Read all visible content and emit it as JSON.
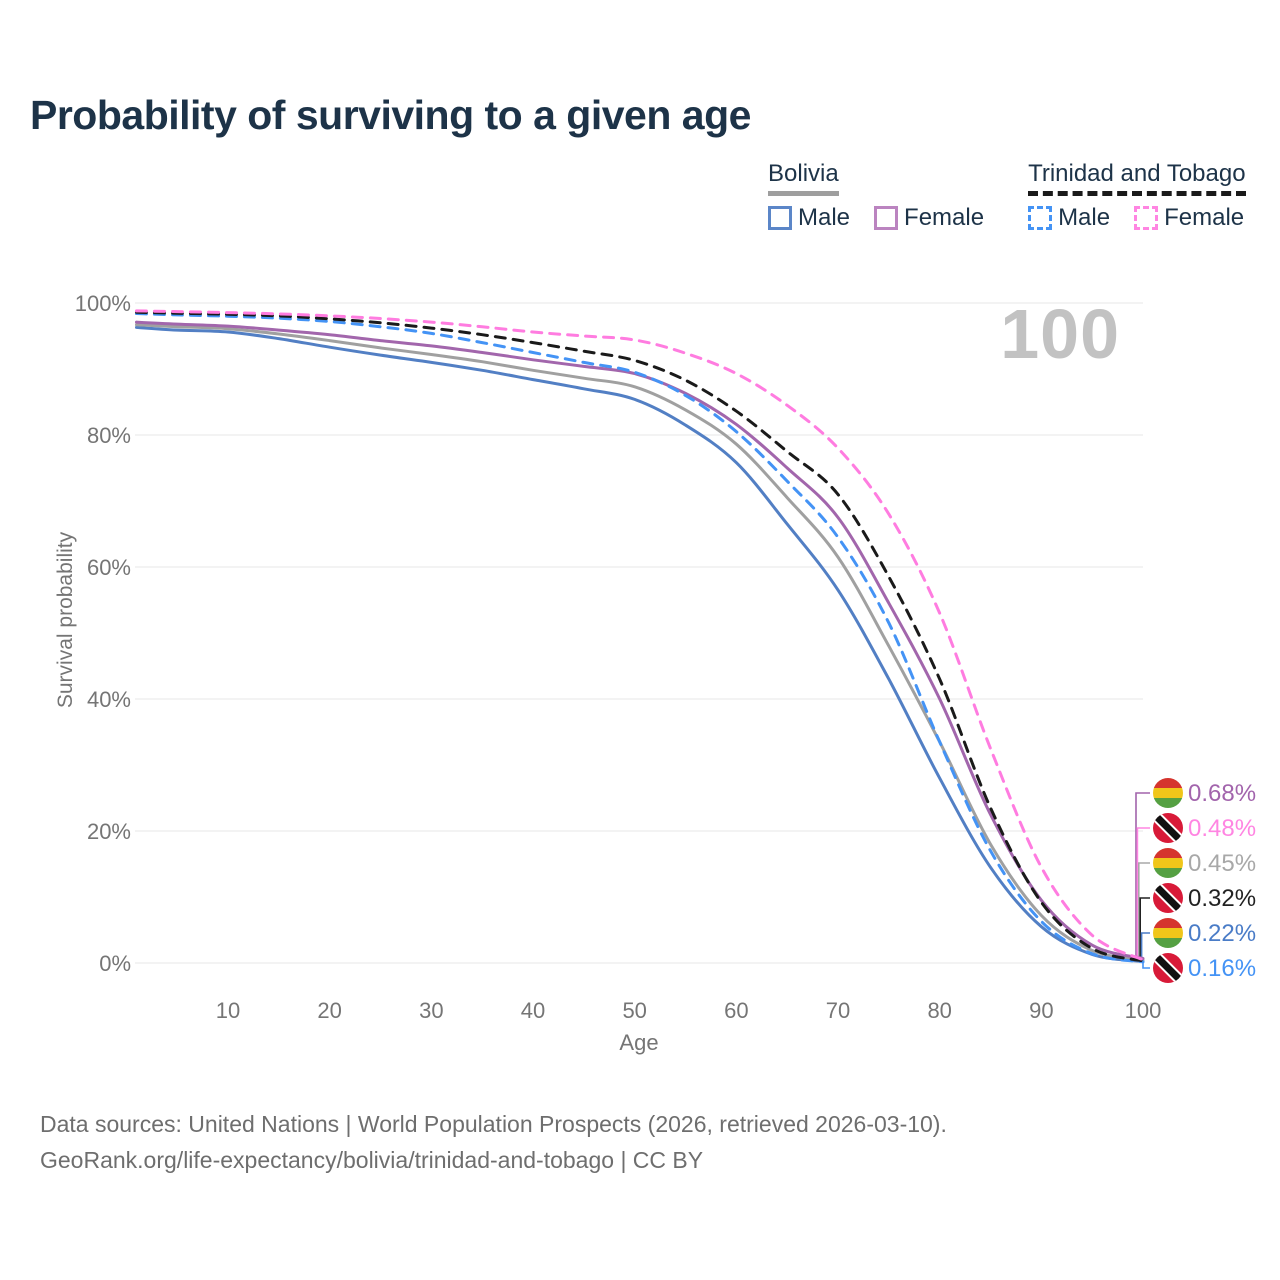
{
  "title": "Probability of surviving to a given age",
  "watermark": "100",
  "legend": {
    "groups": [
      {
        "name": "Bolivia",
        "line_style": "solid",
        "underline_color": "#9e9e9e",
        "items": [
          {
            "label": "Male",
            "color": "#527fc4"
          },
          {
            "label": "Female",
            "color": "#a266ac"
          }
        ]
      },
      {
        "name": "Trinidad and Tobago",
        "line_style": "dashed",
        "underline_color": "#1a1a1a",
        "items": [
          {
            "label": "Male",
            "color": "#4493f5"
          },
          {
            "label": "Female",
            "color": "#ff7ce0"
          }
        ]
      }
    ]
  },
  "chart_data": {
    "type": "line",
    "title": "Probability of surviving to a given age",
    "xlabel": "Age",
    "ylabel": "Survival probability",
    "xlim": [
      0,
      100
    ],
    "ylim": [
      0,
      100
    ],
    "grid": true,
    "legend_position": "top-right",
    "x_ticks": [
      10,
      20,
      30,
      40,
      50,
      60,
      70,
      80,
      90,
      100
    ],
    "y_tick_values": [
      0,
      20,
      40,
      60,
      80,
      100
    ],
    "y_tick_labels": [
      "0%",
      "20%",
      "40%",
      "60%",
      "80%",
      "100%"
    ],
    "x": [
      1,
      5,
      10,
      15,
      20,
      25,
      30,
      35,
      40,
      45,
      50,
      55,
      60,
      65,
      70,
      75,
      80,
      85,
      90,
      95,
      100
    ],
    "series": [
      {
        "name": "Bolivia Male",
        "color": "#527fc4",
        "dash": false,
        "values": [
          96.3,
          95.9,
          95.6,
          94.6,
          93.3,
          92.1,
          91.0,
          89.8,
          88.4,
          87.0,
          85.4,
          81.5,
          75.8,
          66.5,
          56.5,
          43.0,
          28.0,
          14.5,
          5.5,
          1.3,
          0.22
        ]
      },
      {
        "name": "Bolivia Both sexes",
        "color": "#a0a0a0",
        "dash": false,
        "values": [
          96.7,
          96.4,
          96.1,
          95.3,
          94.3,
          93.2,
          92.2,
          91.1,
          89.8,
          88.6,
          87.3,
          83.8,
          78.6,
          70.5,
          61.5,
          48.0,
          33.5,
          18.0,
          7.2,
          1.9,
          0.45
        ]
      },
      {
        "name": "Bolivia Female",
        "color": "#a266ac",
        "dash": false,
        "values": [
          97.1,
          96.8,
          96.5,
          95.9,
          95.2,
          94.3,
          93.5,
          92.5,
          91.4,
          90.4,
          89.3,
          86.3,
          81.6,
          75.0,
          67.5,
          54.5,
          40.0,
          22.5,
          9.5,
          2.7,
          0.68
        ]
      },
      {
        "name": "Trinidad and Tobago Male",
        "color": "#4493f5",
        "dash": true,
        "values": [
          98.4,
          98.2,
          98.0,
          97.7,
          97.2,
          96.4,
          95.4,
          94.0,
          92.5,
          91.0,
          89.5,
          86.0,
          80.5,
          73.0,
          64.5,
          51.5,
          33.5,
          17.0,
          6.3,
          1.4,
          0.16
        ]
      },
      {
        "name": "Trinidad and Tobago Both sexes",
        "color": "#1a1a1a",
        "dash": true,
        "values": [
          98.6,
          98.45,
          98.3,
          98.05,
          97.6,
          97.0,
          96.2,
          95.2,
          94.0,
          92.7,
          91.3,
          88.3,
          83.6,
          77.5,
          71.0,
          58.5,
          43.0,
          23.5,
          9.2,
          2.2,
          0.32
        ]
      },
      {
        "name": "Trinidad and Tobago Female",
        "color": "#ff7ce0",
        "dash": true,
        "values": [
          98.8,
          98.7,
          98.55,
          98.35,
          98.05,
          97.65,
          97.1,
          96.4,
          95.6,
          95.0,
          94.4,
          92.4,
          89.3,
          84.5,
          78.0,
          68.0,
          53.0,
          32.5,
          14.5,
          4.2,
          0.48
        ]
      }
    ],
    "end_labels": [
      {
        "text": "0.68%",
        "value": 0.68,
        "color": "#a264ac",
        "flag": "bolivia",
        "series": "Bolivia Female"
      },
      {
        "text": "0.48%",
        "value": 0.48,
        "color": "#ff85e2",
        "flag": "trinidad",
        "series": "Trinidad and Tobago Female"
      },
      {
        "text": "0.45%",
        "value": 0.45,
        "color": "#a8a8a8",
        "flag": "bolivia",
        "series": "Bolivia Both sexes"
      },
      {
        "text": "0.32%",
        "value": 0.32,
        "color": "#222222",
        "flag": "trinidad",
        "series": "Trinidad and Tobago Both sexes"
      },
      {
        "text": "0.22%",
        "value": 0.22,
        "color": "#4a7cc7",
        "flag": "bolivia",
        "series": "Bolivia Male"
      },
      {
        "text": "0.16%",
        "value": 0.16,
        "color": "#4493f5",
        "flag": "trinidad",
        "series": "Trinidad and Tobago Male"
      }
    ],
    "flag_colors": {
      "bolivia": {
        "red": "#d5342e",
        "yellow": "#f0c61a",
        "green": "#55a042"
      },
      "trinidad": {
        "red": "#d81a38",
        "white": "#ffffff",
        "black": "#111111"
      }
    }
  },
  "source": {
    "line1": "Data sources: United Nations | World Population Prospects (2026, retrieved 2026-03-10).",
    "line2": "GeoRank.org/life-expectancy/bolivia/trinidad-and-tobago | CC BY"
  }
}
